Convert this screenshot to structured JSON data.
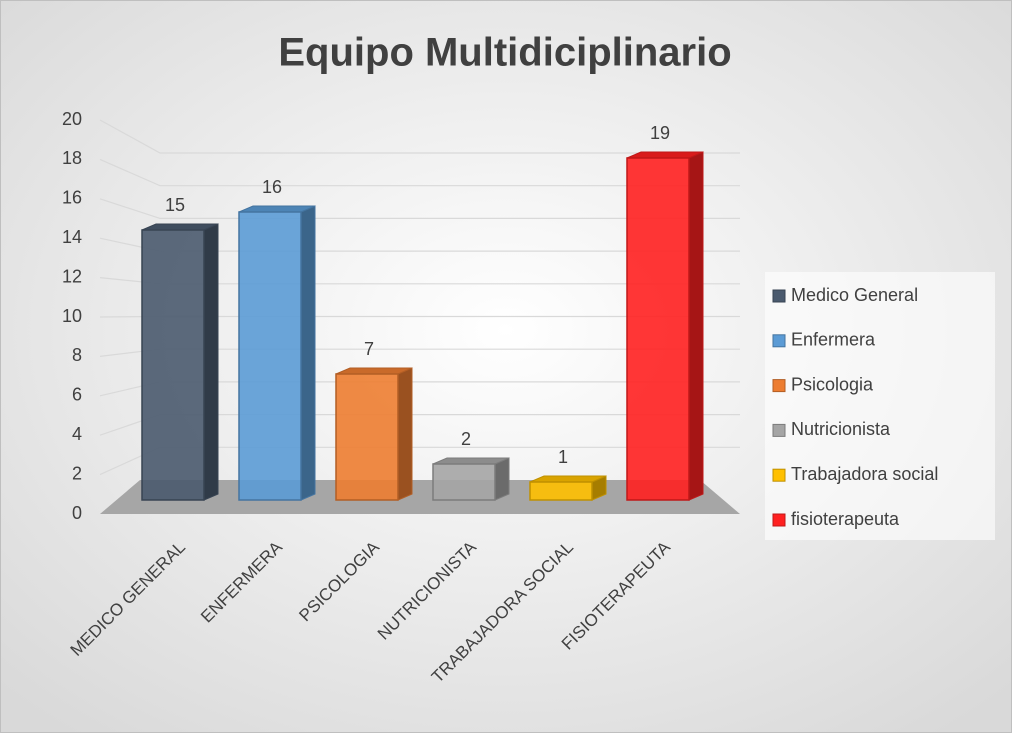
{
  "chart_data": {
    "type": "bar3d",
    "title": "Equipo Multidiciplinario",
    "categories": [
      "MEDICO GENERAL",
      "ENFERMERA",
      "PSICOLOGIA",
      "NUTRICIONISTA",
      "TRABAJADORA SOCIAL",
      "FISIOTERAPEUTA"
    ],
    "values": [
      15,
      16,
      7,
      2,
      1,
      19
    ],
    "colors": [
      "#4a5a6e",
      "#5b9bd5",
      "#ed7d31",
      "#a5a5a5",
      "#ffc000",
      "#ff2020"
    ],
    "legend": [
      "Medico General",
      "Enfermera",
      "Psicologia",
      "Nutricionista",
      "Trabajadora social",
      "fisioterapeuta"
    ],
    "ylim": [
      0,
      20
    ],
    "yticks": [
      0,
      2,
      4,
      6,
      8,
      10,
      12,
      14,
      16,
      18,
      20
    ],
    "grid": true,
    "legend_position": "right"
  }
}
